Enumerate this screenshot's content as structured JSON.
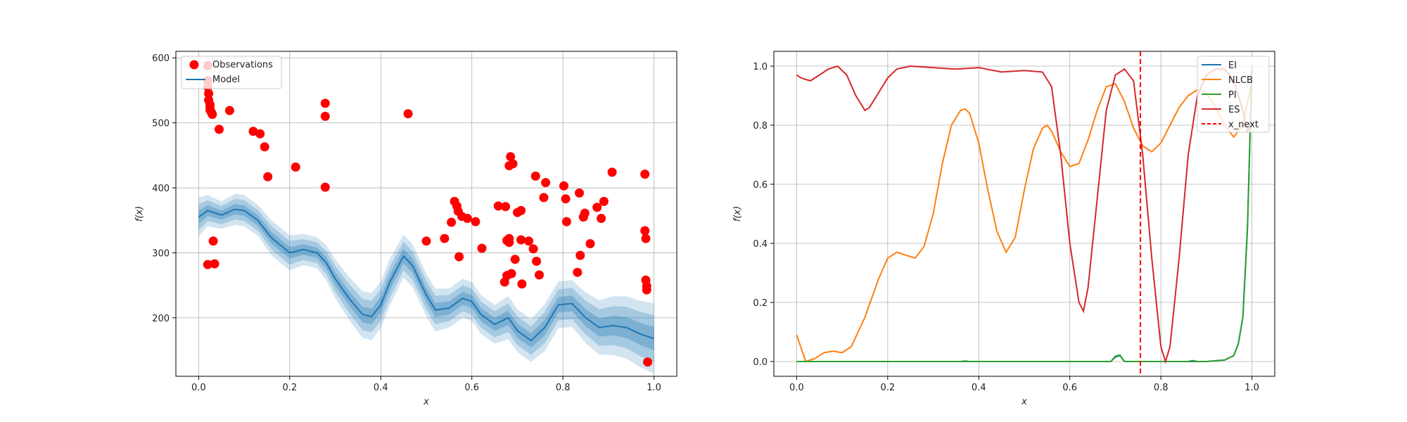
{
  "chart_data": [
    {
      "type": "line",
      "xlabel": "x",
      "ylabel": "f(x)",
      "xlim": [
        -0.05,
        1.05
      ],
      "ylim": [
        110,
        610
      ],
      "xticks": [
        0.0,
        0.2,
        0.4,
        0.6,
        0.8,
        1.0
      ],
      "xtick_labels": [
        "0.0",
        "0.2",
        "0.4",
        "0.6",
        "0.8",
        "1.0"
      ],
      "yticks": [
        200,
        300,
        400,
        500,
        600
      ],
      "ytick_labels": [
        "200",
        "300",
        "400",
        "500",
        "600"
      ],
      "grid": true,
      "legend": {
        "position": "top-left",
        "entries": [
          "Observations",
          "Model"
        ]
      },
      "colors": {
        "observations": "#ff0000",
        "model": "#1f77b4",
        "band": "#1f77b4"
      },
      "model": {
        "name": "Model",
        "x": [
          0.0,
          0.02,
          0.05,
          0.08,
          0.1,
          0.13,
          0.16,
          0.2,
          0.23,
          0.26,
          0.28,
          0.3,
          0.33,
          0.36,
          0.38,
          0.4,
          0.42,
          0.45,
          0.47,
          0.5,
          0.52,
          0.55,
          0.58,
          0.6,
          0.62,
          0.65,
          0.68,
          0.7,
          0.73,
          0.76,
          0.79,
          0.82,
          0.85,
          0.88,
          0.91,
          0.94,
          0.97,
          1.0
        ],
        "mean": [
          355,
          365,
          358,
          367,
          365,
          350,
          323,
          300,
          305,
          300,
          285,
          260,
          230,
          205,
          202,
          220,
          255,
          295,
          280,
          235,
          212,
          215,
          230,
          225,
          205,
          190,
          200,
          180,
          165,
          185,
          220,
          222,
          200,
          185,
          188,
          185,
          175,
          168
        ],
        "std": [
          10,
          8,
          7,
          8,
          8,
          8,
          9,
          9,
          8,
          8,
          9,
          10,
          11,
          12,
          12,
          12,
          12,
          11,
          11,
          11,
          11,
          10,
          10,
          10,
          10,
          10,
          11,
          11,
          11,
          12,
          12,
          12,
          13,
          14,
          15,
          16,
          17,
          18
        ]
      },
      "observations": {
        "name": "Observations",
        "x": [
          0.02,
          0.02,
          0.02,
          0.022,
          0.022,
          0.025,
          0.025,
          0.025,
          0.028,
          0.03,
          0.032,
          0.035,
          0.02,
          0.045,
          0.068,
          0.12,
          0.135,
          0.145,
          0.152,
          0.213,
          0.278,
          0.278,
          0.278,
          0.46,
          0.5,
          0.54,
          0.555,
          0.562,
          0.567,
          0.57,
          0.572,
          0.578,
          0.59,
          0.608,
          0.622,
          0.658,
          0.672,
          0.674,
          0.677,
          0.677,
          0.682,
          0.682,
          0.682,
          0.685,
          0.687,
          0.69,
          0.695,
          0.7,
          0.708,
          0.708,
          0.71,
          0.725,
          0.735,
          0.74,
          0.742,
          0.748,
          0.758,
          0.762,
          0.802,
          0.806,
          0.808,
          0.832,
          0.836,
          0.838,
          0.845,
          0.848,
          0.86,
          0.875,
          0.884,
          0.89,
          0.908,
          0.98,
          0.98,
          0.982,
          0.982,
          0.984,
          0.984,
          0.986
        ],
        "y": [
          588,
          565,
          555,
          545,
          535,
          528,
          524,
          520,
          516,
          513,
          318,
          283,
          282,
          490,
          519,
          487,
          483,
          463,
          417,
          432,
          530,
          510,
          401,
          514,
          318,
          322,
          347,
          379,
          372,
          364,
          294,
          356,
          353,
          348,
          307,
          372,
          255,
          371,
          265,
          319,
          322,
          316,
          434,
          448,
          268,
          437,
          290,
          362,
          365,
          320,
          252,
          318,
          306,
          418,
          287,
          266,
          385,
          408,
          403,
          383,
          348,
          270,
          392,
          296,
          355,
          361,
          314,
          370,
          353,
          379,
          424,
          421,
          334,
          322,
          258,
          249,
          243,
          132
        ]
      }
    },
    {
      "type": "line",
      "xlabel": "x",
      "ylabel": "f(x)",
      "xlim": [
        -0.05,
        1.05
      ],
      "ylim": [
        -0.05,
        1.05
      ],
      "xticks": [
        0.0,
        0.2,
        0.4,
        0.6,
        0.8,
        1.0
      ],
      "xtick_labels": [
        "0.0",
        "0.2",
        "0.4",
        "0.6",
        "0.8",
        "1.0"
      ],
      "yticks": [
        0.0,
        0.2,
        0.4,
        0.6,
        0.8,
        1.0
      ],
      "ytick_labels": [
        "0.0",
        "0.2",
        "0.4",
        "0.6",
        "0.8",
        "1.0"
      ],
      "grid": true,
      "legend": {
        "position": "top-right",
        "entries": [
          "EI",
          "NLCB",
          "PI",
          "ES",
          "x_next"
        ]
      },
      "vline": {
        "name": "x_next",
        "x": 0.755,
        "color": "#ff0000",
        "style": "dashed"
      },
      "series": [
        {
          "name": "EI",
          "color": "#1f77b4",
          "x": [
            0.0,
            0.69,
            0.7,
            0.71,
            0.72,
            0.9,
            0.94,
            0.96,
            0.97,
            0.98,
            0.99,
            1.0
          ],
          "y": [
            0.0,
            0.0,
            0.015,
            0.02,
            0.0,
            0.0,
            0.005,
            0.02,
            0.06,
            0.15,
            0.45,
            1.0
          ]
        },
        {
          "name": "NLCB",
          "color": "#ff7f0e",
          "x": [
            0.0,
            0.02,
            0.04,
            0.06,
            0.08,
            0.1,
            0.12,
            0.15,
            0.18,
            0.2,
            0.22,
            0.24,
            0.26,
            0.28,
            0.3,
            0.32,
            0.34,
            0.36,
            0.37,
            0.38,
            0.4,
            0.42,
            0.44,
            0.46,
            0.48,
            0.5,
            0.52,
            0.54,
            0.55,
            0.56,
            0.58,
            0.6,
            0.62,
            0.64,
            0.66,
            0.68,
            0.7,
            0.72,
            0.74,
            0.76,
            0.78,
            0.8,
            0.82,
            0.84,
            0.86,
            0.88,
            0.9,
            0.92,
            0.94,
            0.96,
            0.98,
            1.0
          ],
          "y": [
            0.09,
            0.0,
            0.01,
            0.03,
            0.035,
            0.03,
            0.05,
            0.15,
            0.28,
            0.35,
            0.37,
            0.36,
            0.35,
            0.39,
            0.5,
            0.67,
            0.8,
            0.85,
            0.855,
            0.84,
            0.74,
            0.58,
            0.44,
            0.37,
            0.42,
            0.58,
            0.72,
            0.79,
            0.8,
            0.78,
            0.71,
            0.66,
            0.67,
            0.75,
            0.85,
            0.93,
            0.94,
            0.88,
            0.79,
            0.73,
            0.71,
            0.74,
            0.8,
            0.86,
            0.9,
            0.92,
            0.91,
            0.86,
            0.8,
            0.76,
            0.8,
            0.95
          ]
        },
        {
          "name": "PI",
          "color": "#2ca02c",
          "x": [
            0.0,
            0.36,
            0.37,
            0.38,
            0.69,
            0.7,
            0.71,
            0.72,
            0.86,
            0.87,
            0.88,
            0.9,
            0.94,
            0.96,
            0.97,
            0.98,
            0.99,
            1.0
          ],
          "y": [
            0.0,
            0.0,
            0.002,
            0.0,
            0.0,
            0.018,
            0.022,
            0.0,
            0.0,
            0.003,
            0.0,
            0.0,
            0.005,
            0.02,
            0.06,
            0.15,
            0.45,
            1.0
          ]
        },
        {
          "name": "ES",
          "color": "#d62728",
          "x": [
            0.0,
            0.01,
            0.03,
            0.05,
            0.07,
            0.09,
            0.11,
            0.13,
            0.15,
            0.16,
            0.18,
            0.2,
            0.22,
            0.25,
            0.3,
            0.35,
            0.4,
            0.45,
            0.5,
            0.54,
            0.56,
            0.58,
            0.6,
            0.62,
            0.63,
            0.64,
            0.66,
            0.68,
            0.7,
            0.72,
            0.74,
            0.76,
            0.78,
            0.8,
            0.81,
            0.82,
            0.84,
            0.86,
            0.88,
            0.9,
            0.92,
            0.94,
            0.96,
            0.98,
            0.99,
            1.0
          ],
          "y": [
            0.97,
            0.96,
            0.95,
            0.97,
            0.99,
            1.0,
            0.97,
            0.9,
            0.85,
            0.86,
            0.91,
            0.96,
            0.99,
            1.0,
            0.995,
            0.99,
            0.995,
            0.98,
            0.985,
            0.98,
            0.93,
            0.7,
            0.4,
            0.2,
            0.17,
            0.25,
            0.55,
            0.85,
            0.97,
            0.99,
            0.95,
            0.7,
            0.35,
            0.05,
            0.0,
            0.05,
            0.35,
            0.7,
            0.9,
            0.97,
            0.99,
            0.99,
            0.95,
            0.85,
            0.78,
            0.8
          ]
        }
      ]
    }
  ]
}
